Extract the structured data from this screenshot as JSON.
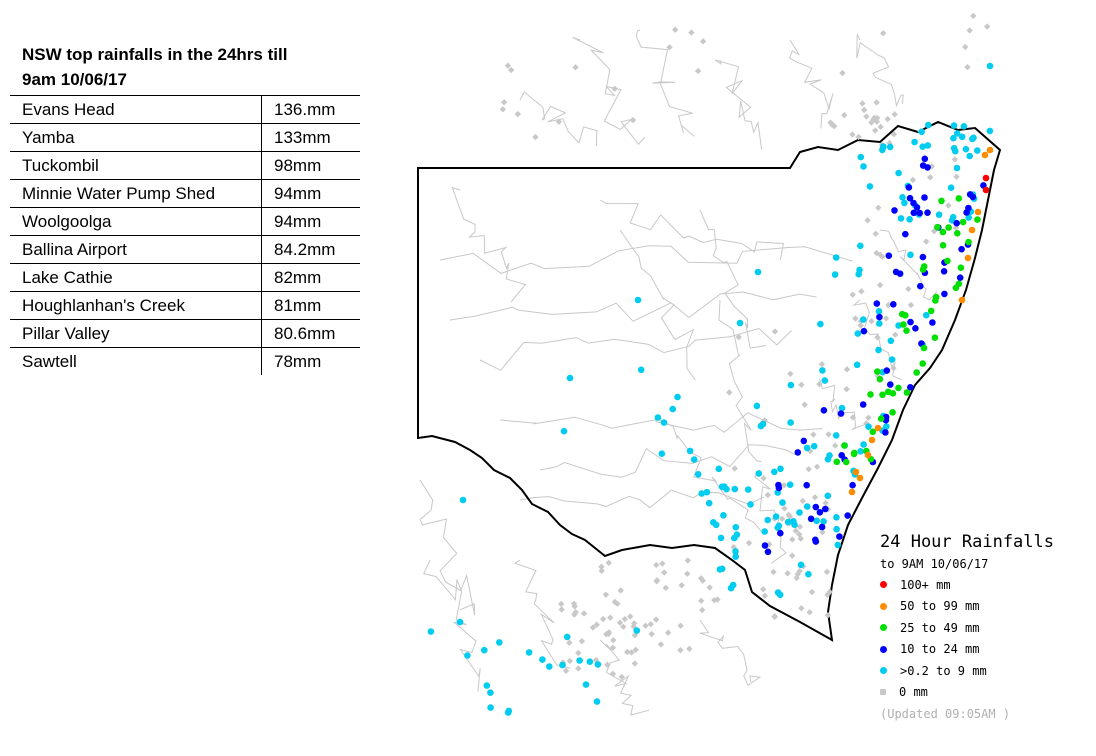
{
  "table": {
    "title_line1": "NSW top rainfalls in the 24hrs till",
    "title_line2": "9am 10/06/17",
    "rows": [
      {
        "place": "Evans Head",
        "amount": "136.mm"
      },
      {
        "place": "Yamba",
        "amount": "133mm"
      },
      {
        "place": "Tuckombil",
        "amount": "98mm"
      },
      {
        "place": "Minnie Water Pump Shed",
        "amount": "94mm"
      },
      {
        "place": "Woolgoolga",
        "amount": "94mm"
      },
      {
        "place": "Ballina Airport",
        "amount": "84.2mm"
      },
      {
        "place": "Lake Cathie",
        "amount": "82mm"
      },
      {
        "place": "Houghlanhan's Creek",
        "amount": "81mm"
      },
      {
        "place": "Pillar Valley",
        "amount": "80.6mm"
      },
      {
        "place": "Sawtell",
        "amount": "78mm"
      }
    ]
  },
  "legend": {
    "title": "24 Hour Rainfalls",
    "subtitle": "to 9AM 10/06/17",
    "items": [
      {
        "label": "100+ mm",
        "color": "#ff0000"
      },
      {
        "label": "50  to 99 mm",
        "color": "#ff8c00"
      },
      {
        "label": "25  to 49 mm",
        "color": "#00e000"
      },
      {
        "label": "10  to 24 mm",
        "color": "#0000ff"
      },
      {
        "label": ">0.2 to 9 mm",
        "color": "#00ccf0"
      },
      {
        "label": "0 mm",
        "color": "#c8c8c8"
      }
    ],
    "updated": "(Updated 09:05AM  )"
  },
  "map": {
    "region": "New South Wales",
    "colors": {
      "border": "#000000",
      "rivers": "#c8c8c8",
      "zero": "#c8c8c8",
      "light": "#00ccf0",
      "ten": "#0000ff",
      "twentyfive": "#00e000",
      "fifty": "#ff8c00",
      "hundred": "#ff0000"
    }
  }
}
